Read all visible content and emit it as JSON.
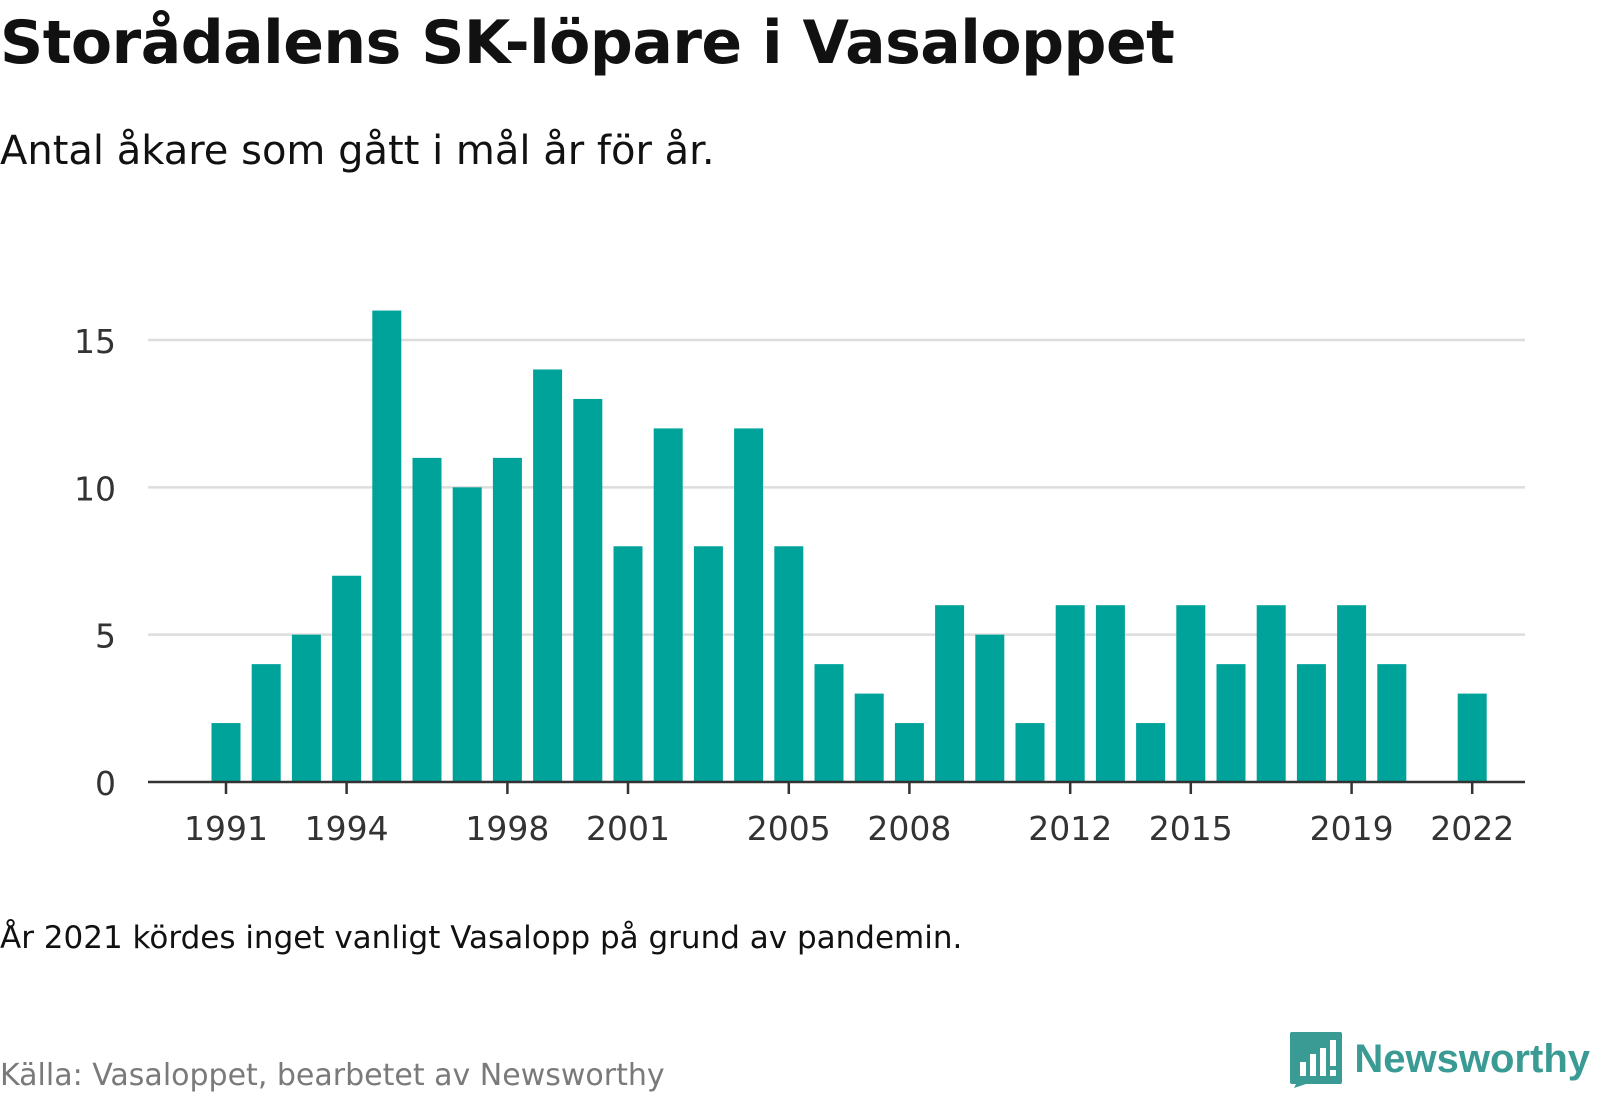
{
  "header": {
    "title": "Storådalens SK-löpare i Vasaloppet",
    "subtitle": "Antal åkare som gått i mål år för år."
  },
  "footer": {
    "note": "År 2021 kördes inget vanligt Vasalopp på grund av pandemin.",
    "source": "Källa: Vasaloppet, bearbetet av Newsworthy",
    "brand": "Newsworthy",
    "brand_icon": "newsworthy-logo-icon"
  },
  "colors": {
    "bar": "#00a39a",
    "grid": "#dddddd",
    "axis": "#333333",
    "brand": "#3a9b94"
  },
  "chart_data": {
    "type": "bar",
    "title": "Storådalens SK-löpare i Vasaloppet",
    "subtitle": "Antal åkare som gått i mål år för år.",
    "xlabel": "",
    "ylabel": "",
    "categories": [
      1991,
      1992,
      1993,
      1994,
      1995,
      1996,
      1997,
      1998,
      1999,
      2000,
      2001,
      2002,
      2003,
      2004,
      2005,
      2006,
      2007,
      2008,
      2009,
      2010,
      2011,
      2012,
      2013,
      2014,
      2015,
      2016,
      2017,
      2018,
      2019,
      2020,
      2021,
      2022
    ],
    "values": [
      2,
      4,
      5,
      7,
      16,
      11,
      10,
      11,
      14,
      13,
      8,
      12,
      8,
      12,
      8,
      4,
      3,
      2,
      6,
      5,
      2,
      6,
      6,
      2,
      6,
      4,
      6,
      4,
      6,
      4,
      null,
      3
    ],
    "x_tick_labels": [
      "1991",
      "1994",
      "1998",
      "2001",
      "2005",
      "2008",
      "2012",
      "2015",
      "2019",
      "2022"
    ],
    "y_ticks": [
      0,
      5,
      10,
      15
    ],
    "ylim": [
      0,
      16.5
    ],
    "grid": "horizontal",
    "legend": "none"
  }
}
